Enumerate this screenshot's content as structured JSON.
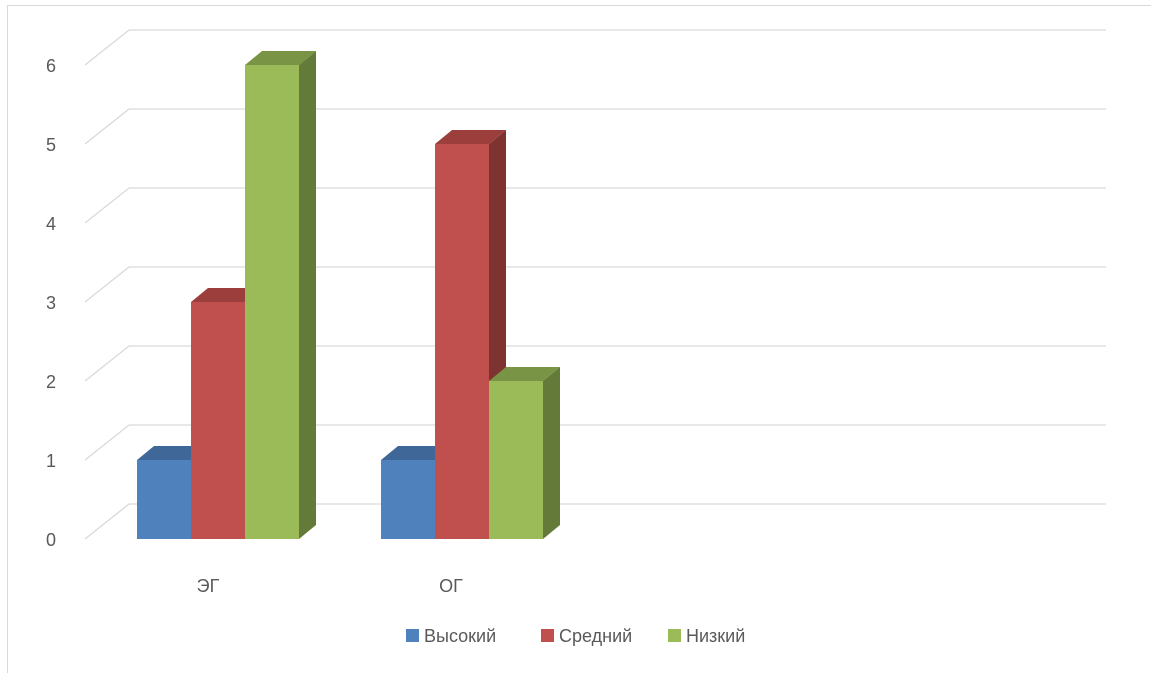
{
  "chart_data": {
    "type": "bar",
    "title": "",
    "xlabel": "",
    "ylabel": "",
    "categories": [
      "ЭГ",
      "ОГ"
    ],
    "series": [
      {
        "name": "Высокий",
        "values": [
          1,
          1
        ],
        "color": "#4F81BD",
        "side_color": "#385D8A",
        "top_color": "#3F6899"
      },
      {
        "name": "Средний",
        "values": [
          3,
          5
        ],
        "color": "#C0504D",
        "side_color": "#7E3331",
        "top_color": "#9C3F3C"
      },
      {
        "name": "Низкий",
        "values": [
          6,
          2
        ],
        "color": "#9BBB59",
        "side_color": "#647A39",
        "top_color": "#7A9446"
      }
    ],
    "ylim": [
      0,
      6
    ],
    "yticks": [
      "0",
      "1",
      "2",
      "3",
      "4",
      "5",
      "6"
    ],
    "grid": true,
    "legend": "bottom",
    "perspective": "3d"
  }
}
